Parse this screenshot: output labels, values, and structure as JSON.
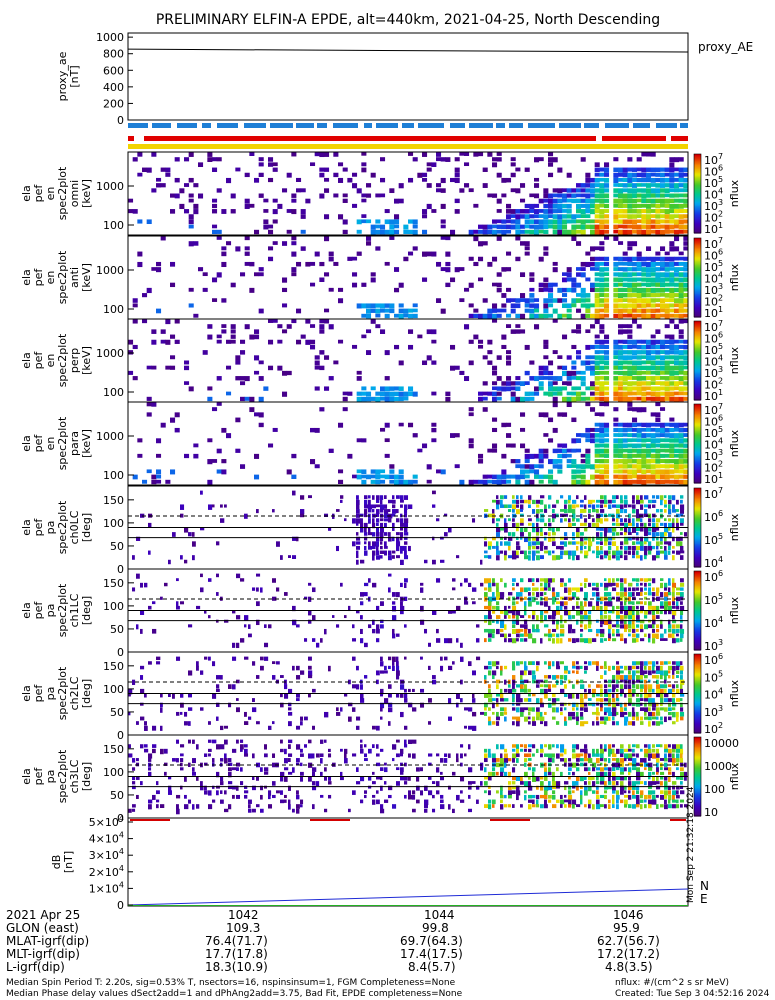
{
  "title": "PRELIMINARY ELFIN-A EPDE, alt=440km, 2021-04-25, North Descending",
  "ae_panel": {
    "ylabel": [
      "proxy_ae",
      "[nT]"
    ],
    "yticks": [
      "1000",
      "800",
      "600",
      "400",
      "200",
      "0"
    ],
    "legend": "proxy_AE",
    "ylim": [
      0,
      1050
    ],
    "line": {
      "x": [
        0,
        1
      ],
      "y": [
        855,
        820
      ]
    }
  },
  "energy_panels": [
    {
      "ylabel": [
        "ela",
        "pef",
        "en",
        "spec2plot",
        "omni",
        "[keV]"
      ],
      "yticks": [
        "1000",
        "100"
      ],
      "cbar_label": "nflux"
    },
    {
      "ylabel": [
        "ela",
        "pef",
        "en",
        "spec2plot",
        "anti",
        "[keV]"
      ],
      "yticks": [
        "1000",
        "100"
      ],
      "cbar_label": "nflux"
    },
    {
      "ylabel": [
        "ela",
        "pef",
        "en",
        "spec2plot",
        "perp",
        "[keV]"
      ],
      "yticks": [
        "1000",
        "100"
      ],
      "cbar_label": "nflux"
    },
    {
      "ylabel": [
        "ela",
        "pef",
        "en",
        "spec2plot",
        "para",
        "[keV]"
      ],
      "yticks": [
        "1000",
        "100"
      ],
      "cbar_label": "nflux"
    }
  ],
  "pitch_panels": [
    {
      "ylabel": [
        "ela",
        "pef",
        "pa",
        "spec2plot",
        "ch0LC",
        "[deg]"
      ],
      "yticks": [
        "150",
        "100",
        "50",
        "0"
      ],
      "cbar_label": "nflux",
      "cbar_ticks": [
        "10^7",
        "10^6",
        "10^5",
        "10^4"
      ]
    },
    {
      "ylabel": [
        "ela",
        "pef",
        "pa",
        "spec2plot",
        "ch1LC",
        "[deg]"
      ],
      "yticks": [
        "150",
        "100",
        "50",
        "0"
      ],
      "cbar_label": "nflux",
      "cbar_ticks": [
        "10^6",
        "10^5",
        "10^4",
        "10^3"
      ]
    },
    {
      "ylabel": [
        "ela",
        "pef",
        "pa",
        "spec2plot",
        "ch2LC",
        "[deg]"
      ],
      "yticks": [
        "150",
        "100",
        "50",
        "0"
      ],
      "cbar_label": "nflux",
      "cbar_ticks": [
        "10^6",
        "10^5",
        "10^4",
        "10^3",
        "10^2"
      ]
    },
    {
      "ylabel": [
        "ela",
        "pef",
        "pa",
        "spec2plot",
        "ch3LC",
        "[deg]"
      ],
      "yticks": [
        "150",
        "100",
        "50",
        "0"
      ],
      "cbar_label": "nflux",
      "cbar_ticks": [
        "10000",
        "1000",
        "100",
        "10"
      ]
    }
  ],
  "energy_cbar_ticks": [
    "10^7",
    "10^6",
    "10^5",
    "10^4",
    "10^3",
    "10^2",
    "10^1"
  ],
  "b_panel": {
    "ylabel": [
      "dB",
      "[nT]"
    ],
    "yticks": [
      "5×10^4",
      "4×10^4",
      "3×10^4",
      "2×10^4",
      "1×10^4",
      "0"
    ],
    "legend": [
      {
        "label": "N",
        "color": "#1f2bd6"
      },
      {
        "label": "E",
        "color": "#22b022"
      }
    ],
    "side_text": "Mon Sep  2 21:32:18 2024"
  },
  "chart_data": [
    {
      "type": "line",
      "title": "PRELIMINARY ELFIN-A EPDE, alt=440km, 2021-04-25, North Descending",
      "series": [
        {
          "name": "proxy_AE",
          "x": [
            "10:41",
            "10:47"
          ],
          "values": [
            855,
            820
          ]
        }
      ],
      "ylabel": "proxy_ae [nT]",
      "ylim": [
        0,
        1050
      ]
    },
    {
      "type": "heatmap",
      "ylabel": "ela pef en spec2plot omni [keV]",
      "y_scale": "log",
      "ylim": [
        60,
        6000
      ],
      "color_scale": "log",
      "zlim": [
        10,
        10000000
      ],
      "zlabel": "nflux"
    },
    {
      "type": "heatmap",
      "ylabel": "ela pef en spec2plot anti [keV]",
      "y_scale": "log",
      "ylim": [
        60,
        6000
      ],
      "color_scale": "log",
      "zlim": [
        10,
        10000000
      ],
      "zlabel": "nflux"
    },
    {
      "type": "heatmap",
      "ylabel": "ela pef en spec2plot perp [keV]",
      "y_scale": "log",
      "ylim": [
        60,
        6000
      ],
      "color_scale": "log",
      "zlim": [
        10,
        10000000
      ],
      "zlabel": "nflux"
    },
    {
      "type": "heatmap",
      "ylabel": "ela pef en spec2plot para [keV]",
      "y_scale": "log",
      "ylim": [
        60,
        6000
      ],
      "color_scale": "log",
      "zlim": [
        10,
        10000000
      ],
      "zlabel": "nflux"
    },
    {
      "type": "heatmap",
      "ylabel": "ela pef pa spec2plot ch0LC [deg]",
      "ylim": [
        0,
        180
      ],
      "zlabel": "nflux",
      "zlim": [
        10000,
        10000000
      ]
    },
    {
      "type": "heatmap",
      "ylabel": "ela pef pa spec2plot ch1LC [deg]",
      "ylim": [
        0,
        180
      ],
      "zlabel": "nflux",
      "zlim": [
        1000,
        1000000
      ]
    },
    {
      "type": "heatmap",
      "ylabel": "ela pef pa spec2plot ch2LC [deg]",
      "ylim": [
        0,
        180
      ],
      "zlabel": "nflux",
      "zlim": [
        100,
        1000000
      ]
    },
    {
      "type": "heatmap",
      "ylabel": "ela pef pa spec2plot ch3LC [deg]",
      "ylim": [
        0,
        180
      ],
      "zlabel": "nflux",
      "zlim": [
        10,
        10000
      ]
    },
    {
      "type": "line",
      "ylabel": "dB [nT]",
      "ylim": [
        0,
        50000
      ],
      "series": [
        {
          "name": "N",
          "x": [
            "10:41",
            "10:47"
          ],
          "values": [
            0,
            9000
          ]
        },
        {
          "name": "E",
          "x": [
            "10:41",
            "10:47"
          ],
          "values": [
            0,
            0
          ]
        }
      ]
    }
  ],
  "orbit_table": {
    "rows": [
      {
        "label": "2021 Apr 25",
        "values": [
          "1042",
          "1044",
          "1046"
        ]
      },
      {
        "label": "GLON (east)",
        "values": [
          "109.3",
          "99.8",
          "95.9"
        ]
      },
      {
        "label": "MLAT-igrf(dip)",
        "values": [
          "76.4(71.7)",
          "69.7(64.3)",
          "62.7(56.7)"
        ]
      },
      {
        "label": "MLT-igrf(dip)",
        "values": [
          "17.7(17.8)",
          "17.4(17.5)",
          "17.2(17.2)"
        ]
      },
      {
        "label": "L-igrf(dip)",
        "values": [
          "18.3(10.9)",
          "8.4(5.7)",
          "4.8(3.5)"
        ]
      }
    ]
  },
  "footer": {
    "line1": "Median Spin Period T: 2.20s, sig=0.53% T, nsectors=16, nspinsinsum=1, FGM Completeness=None",
    "line2": "Median Phase delay values dSect2add=1 and dPhAng2add=3.75, Bad Fit, EPDE completeness=None",
    "units": "nflux: #/(cm^2 s sr MeV)",
    "created": "Created: Tue Sep  3 04:52:16 2024"
  }
}
